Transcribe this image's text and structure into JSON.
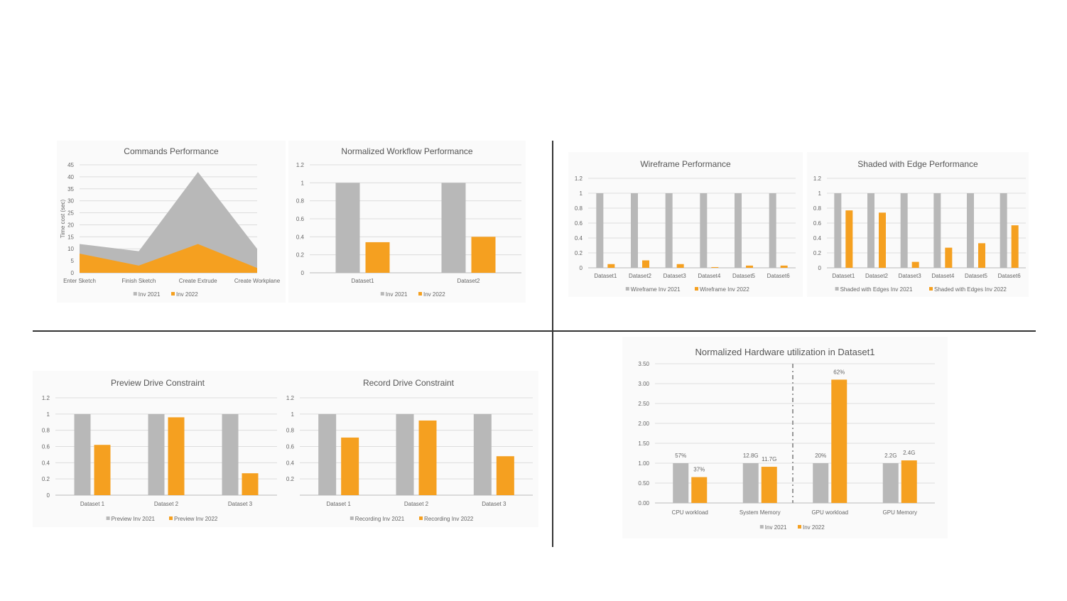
{
  "colors": {
    "inv2021": "#b8b8b8",
    "inv2022": "#f5a020",
    "axis_text": "#666666",
    "title_text": "#555555",
    "grid": "#dddddd"
  },
  "chart_data": [
    {
      "id": "commands",
      "type": "area",
      "title": "Commands Performance",
      "ylabel": "Time cost (sec)",
      "categories": [
        "Enter Sketch",
        "Finish Sketch",
        "Create Extrude",
        "Create Workplane"
      ],
      "ylim": [
        0,
        45
      ],
      "yticks": [
        "0",
        "5",
        "10",
        "15",
        "20",
        "25",
        "30",
        "35",
        "40",
        "45"
      ],
      "series": [
        {
          "name": "Inv 2021",
          "values": [
            12,
            9,
            42,
            10
          ]
        },
        {
          "name": "Inv 2022",
          "values": [
            8,
            3,
            12,
            2
          ]
        }
      ],
      "legend": "bottom",
      "grid": true
    },
    {
      "id": "workflow",
      "type": "bar",
      "title": "Normalized Workflow Performance",
      "categories": [
        "Dataset1",
        "Dataset2"
      ],
      "ylim": [
        0,
        1.2
      ],
      "yticks": [
        "0",
        "0.2",
        "0.4",
        "0.6",
        "0.8",
        "1",
        "1.2"
      ],
      "series": [
        {
          "name": "Inv 2021",
          "values": [
            1,
            1
          ]
        },
        {
          "name": "Inv 2022",
          "values": [
            0.34,
            0.4
          ]
        }
      ],
      "legend": "bottom",
      "grid": true
    },
    {
      "id": "wireframe",
      "type": "bar",
      "title": "Wireframe Performance",
      "categories": [
        "Dataset1",
        "Dataset2",
        "Dataset3",
        "Dataset4",
        "Dataset5",
        "Dataset6"
      ],
      "ylim": [
        0,
        1.2
      ],
      "yticks": [
        "0",
        "0.2",
        "0.4",
        "0.6",
        "0.8",
        "1",
        "1.2"
      ],
      "series": [
        {
          "name": "Wireframe Inv 2021",
          "values": [
            1,
            1,
            1,
            1,
            1,
            1
          ]
        },
        {
          "name": "Wireframe Inv 2022",
          "values": [
            0.05,
            0.1,
            0.05,
            0.01,
            0.03,
            0.03
          ]
        }
      ],
      "legend": "bottom",
      "grid": true
    },
    {
      "id": "shaded",
      "type": "bar",
      "title": "Shaded with Edge Performance",
      "categories": [
        "Dataset1",
        "Dataset2",
        "Dataset3",
        "Dataset4",
        "Dataset5",
        "Dataset6"
      ],
      "ylim": [
        0,
        1.2
      ],
      "yticks": [
        "0",
        "0.2",
        "0.4",
        "0.6",
        "0.8",
        "1",
        "1.2"
      ],
      "series": [
        {
          "name": "Shaded with Edges Inv 2021",
          "values": [
            1,
            1,
            1,
            1,
            1,
            1
          ]
        },
        {
          "name": "Shaded with Edges Inv 2022",
          "values": [
            0.77,
            0.74,
            0.08,
            0.27,
            0.33,
            0.57
          ]
        }
      ],
      "legend": "bottom",
      "grid": true
    },
    {
      "id": "preview",
      "type": "bar",
      "title": "Preview Drive Constraint",
      "categories": [
        "Dataset 1",
        "Dataset 2",
        "Dataset 3"
      ],
      "ylim": [
        0,
        1.2
      ],
      "yticks": [
        "0",
        "0.2",
        "0.4",
        "0.6",
        "0.8",
        "1",
        "1.2"
      ],
      "series": [
        {
          "name": "Preview Inv 2021",
          "values": [
            1,
            1,
            1
          ]
        },
        {
          "name": "Preview Inv 2022",
          "values": [
            0.62,
            0.96,
            0.27
          ]
        }
      ],
      "legend": "bottom",
      "grid": true
    },
    {
      "id": "record",
      "type": "bar",
      "title": "Record Drive Constraint",
      "categories": [
        "Dataset 1",
        "Dataset 2",
        "Dataset 3"
      ],
      "ylim": [
        0,
        1.2
      ],
      "yticks": [
        "",
        "0.2",
        "0.4",
        "0.6",
        "0.8",
        "1",
        "1.2"
      ],
      "series": [
        {
          "name": "Recording Inv 2021",
          "values": [
            1,
            1,
            1
          ]
        },
        {
          "name": "Recording Inv 2022",
          "values": [
            0.71,
            0.92,
            0.48
          ]
        }
      ],
      "legend": "bottom",
      "grid": true
    },
    {
      "id": "hardware",
      "type": "bar",
      "title": "Normalized Hardware utilization in Dataset1",
      "categories": [
        "CPU workload",
        "System Memory",
        "GPU workload",
        "GPU Memory"
      ],
      "ylim": [
        0,
        3.5
      ],
      "yticks": [
        "0.00",
        "0.50",
        "1.00",
        "1.50",
        "2.00",
        "2.50",
        "3.00",
        "3.50"
      ],
      "series": [
        {
          "name": "Inv 2021",
          "values": [
            1,
            1,
            1,
            1
          ],
          "labels": [
            "57%",
            "12.8G",
            "20%",
            "2.2G"
          ]
        },
        {
          "name": "Inv 2022",
          "values": [
            0.65,
            0.91,
            3.1,
            1.07
          ],
          "labels": [
            "37%",
            "11.7G",
            "62%",
            "2.4G"
          ]
        }
      ],
      "legend": "bottom",
      "grid": true
    }
  ]
}
